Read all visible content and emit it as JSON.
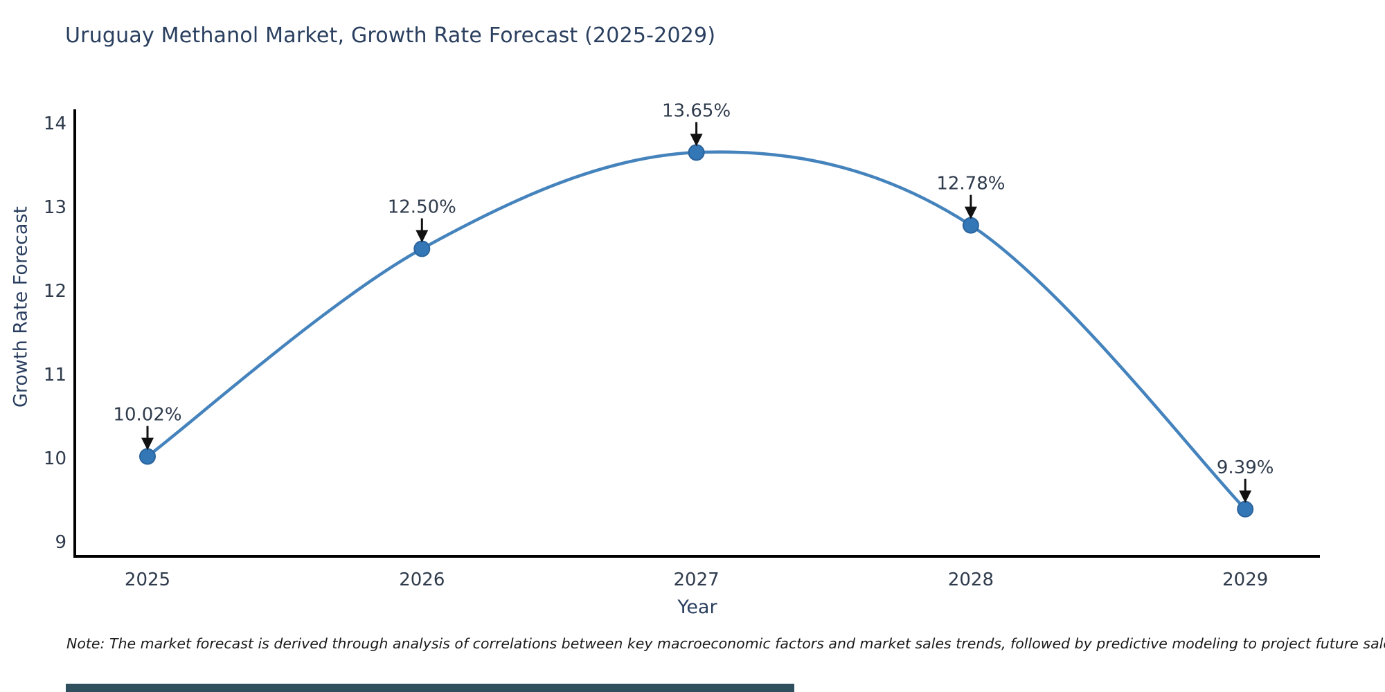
{
  "title": "Uruguay Methanol Market, Growth Rate Forecast (2025-2029)",
  "note": "Note: The market forecast is derived through analysis of correlations between key macroeconomic factors and market sales trends, followed by predictive modeling to project future sales",
  "chart_data": {
    "type": "line",
    "line_shape": "spline",
    "title": "Uruguay Methanol Market, Growth Rate Forecast (2025-2029)",
    "xlabel": "Year",
    "ylabel": "Growth Rate Forecast",
    "x": [
      2025,
      2026,
      2027,
      2028,
      2029
    ],
    "categories": [
      "2025",
      "2026",
      "2027",
      "2028",
      "2029"
    ],
    "values": [
      10.02,
      12.5,
      13.65,
      12.78,
      9.39
    ],
    "point_labels": [
      "10.02%",
      "12.50%",
      "13.65%",
      "12.78%",
      "9.39%"
    ],
    "yticks": [
      9,
      10,
      11,
      12,
      13,
      14
    ],
    "ylim": [
      8.84,
      14.17
    ],
    "grid": false,
    "legend": "none",
    "markers": true,
    "annotations_with_arrows": true,
    "colors": {
      "line": "#4583bd",
      "marker_fill": "#3477b6",
      "marker_stroke": "#2b649c",
      "axis_line": "#000000",
      "tick_text": "#2f3b4c",
      "annotation_text": "#2f3b4c",
      "annotation_arrow": "#111111",
      "title_text": "#2a3f5f",
      "footer_bar": "#2f4f5f"
    }
  }
}
